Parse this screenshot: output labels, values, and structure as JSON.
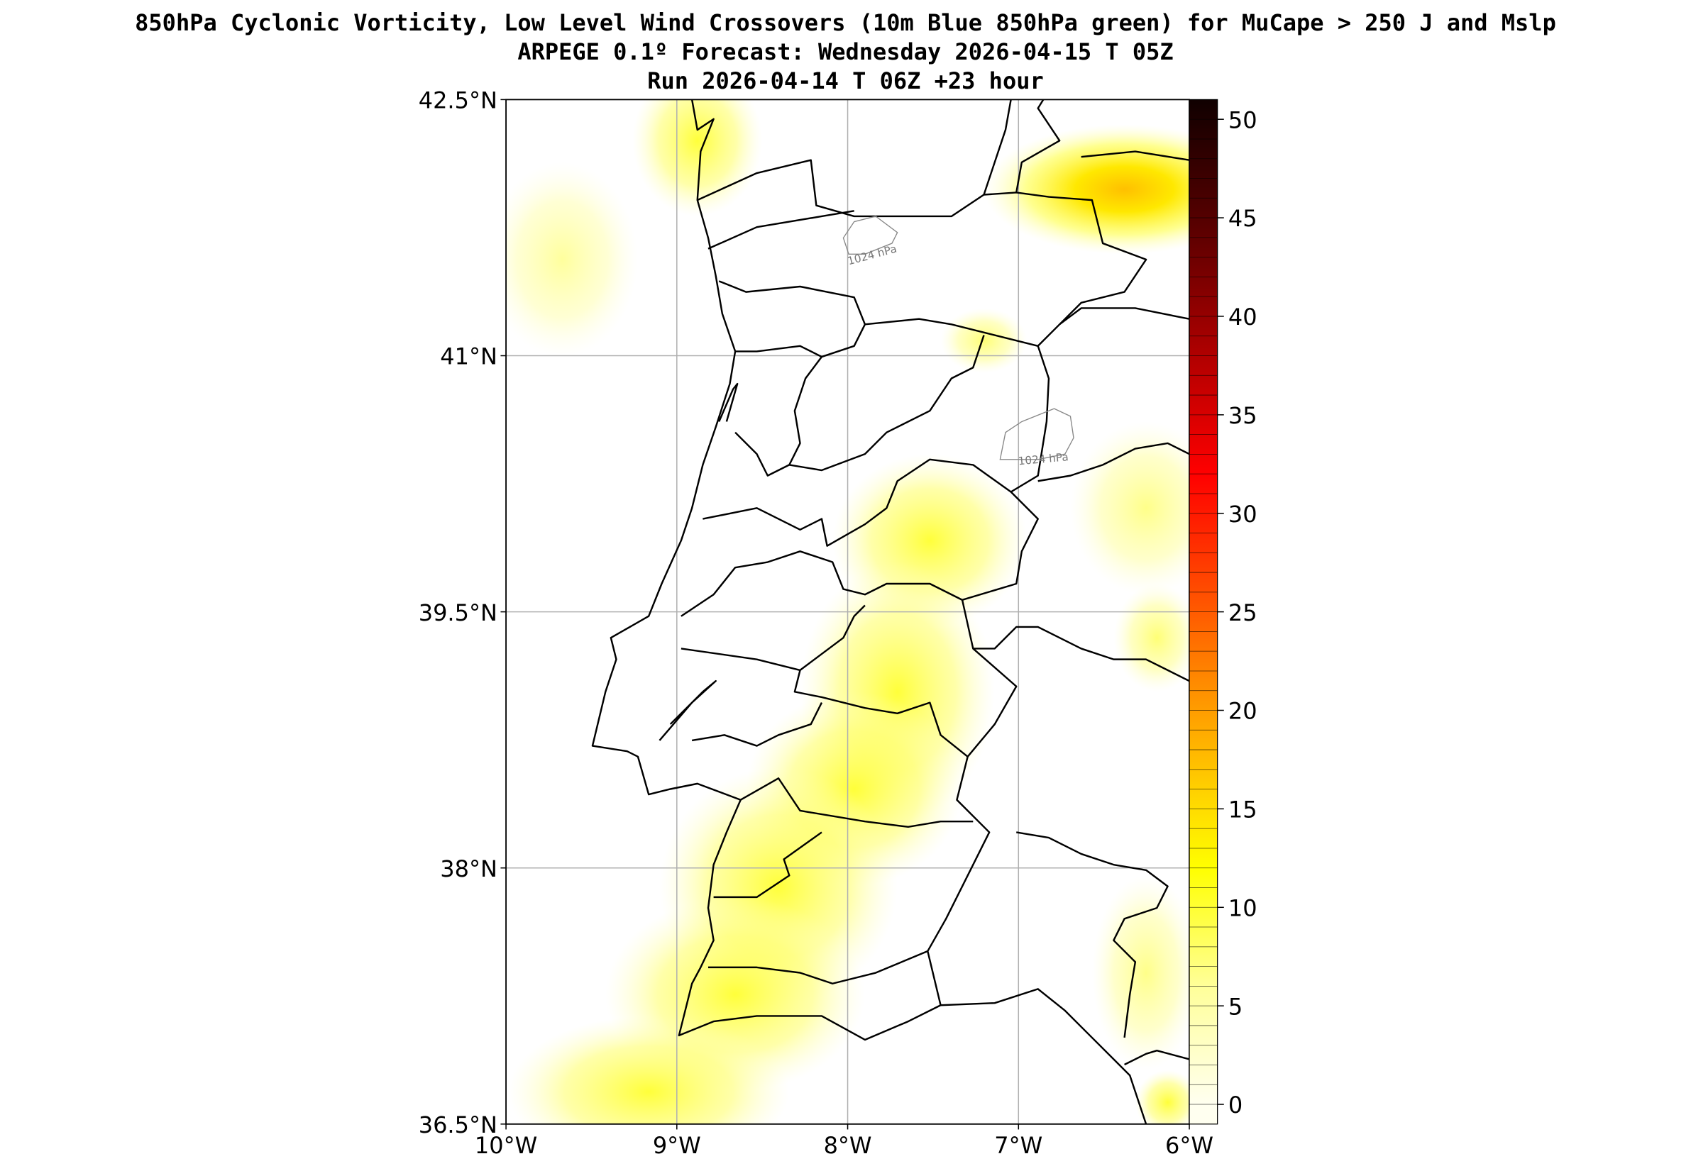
{
  "titles": {
    "line1": "850hPa Cyclonic Vorticity, Low Level Wind Crossovers (10m Blue 850hPa green) for MuCape > 250 J and Mslp",
    "line2": "ARPEGE 0.1º Forecast: Wednesday 2026-04-15 T 05Z",
    "line3": "Run 2026-04-14 T 06Z +23 hour"
  },
  "map": {
    "lon_range": [
      -10,
      -6
    ],
    "lat_range": [
      36.5,
      42.5
    ],
    "x_ticks": [
      {
        "value": -10,
        "label": "10°W"
      },
      {
        "value": -9,
        "label": "9°W"
      },
      {
        "value": -8,
        "label": "8°W"
      },
      {
        "value": -7,
        "label": "7°W"
      },
      {
        "value": -6,
        "label": "6°W"
      }
    ],
    "y_ticks": [
      {
        "value": 36.5,
        "label": "36.5°N"
      },
      {
        "value": 38,
        "label": "38°N"
      },
      {
        "value": 39.5,
        "label": "39.5°N"
      },
      {
        "value": 41,
        "label": "41°N"
      },
      {
        "value": 42.5,
        "label": "42.5°N"
      }
    ],
    "isobar_labels": [
      "1024 hPa",
      "1024 hPa"
    ]
  },
  "colorbar": {
    "range": [
      -1,
      51
    ],
    "ticks": [
      {
        "value": 0,
        "label": "0"
      },
      {
        "value": 5,
        "label": "5"
      },
      {
        "value": 10,
        "label": "10"
      },
      {
        "value": 15,
        "label": "15"
      },
      {
        "value": 20,
        "label": "20"
      },
      {
        "value": 25,
        "label": "25"
      },
      {
        "value": 30,
        "label": "30"
      },
      {
        "value": 35,
        "label": "35"
      },
      {
        "value": 40,
        "label": "40"
      },
      {
        "value": 45,
        "label": "45"
      },
      {
        "value": 50,
        "label": "50"
      }
    ],
    "colors": [
      {
        "value": 0,
        "color": "#fffff0"
      },
      {
        "value": 6,
        "color": "#ffff99"
      },
      {
        "value": 12,
        "color": "#ffff00"
      },
      {
        "value": 16,
        "color": "#ffd000"
      },
      {
        "value": 21,
        "color": "#ff9000"
      },
      {
        "value": 27,
        "color": "#ff4000"
      },
      {
        "value": 32,
        "color": "#ff0000"
      },
      {
        "value": 38,
        "color": "#b00000"
      },
      {
        "value": 44,
        "color": "#600000"
      },
      {
        "value": 51,
        "color": "#100000"
      }
    ]
  }
}
